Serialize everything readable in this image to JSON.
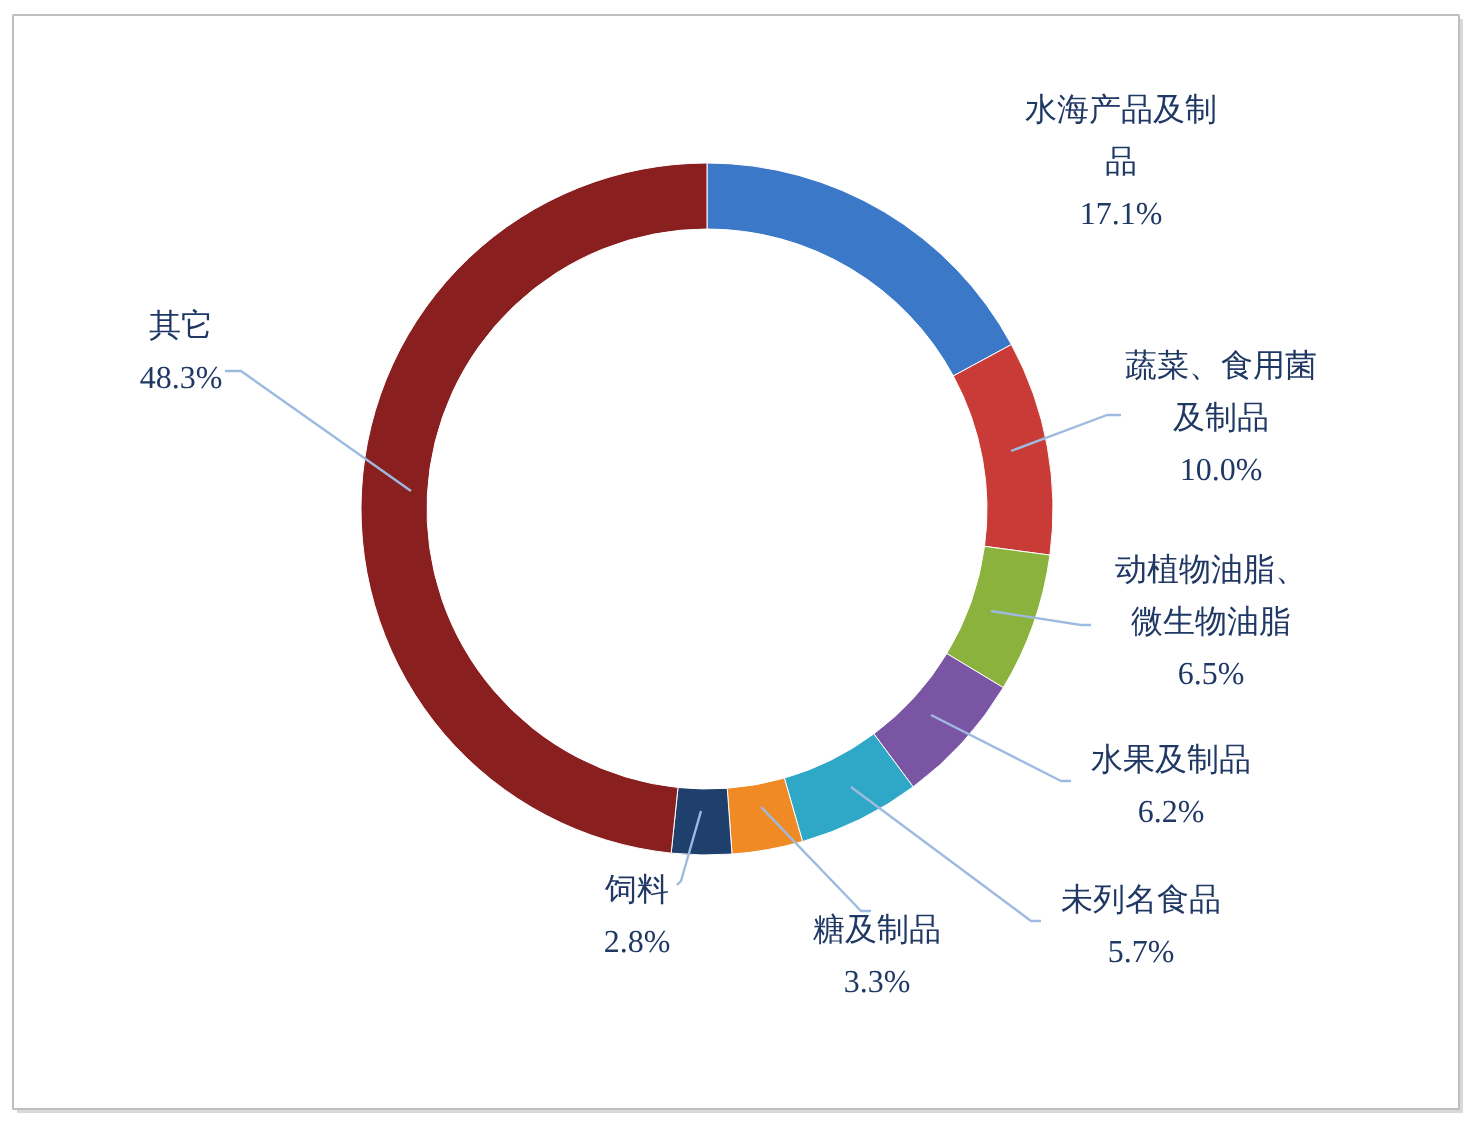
{
  "chart_data": {
    "type": "donut",
    "categories": [
      "水海产品及制品",
      "蔬菜、食用菌及制品",
      "动植物油脂、微生物油脂",
      "水果及制品",
      "未列名食品",
      "糖及制品",
      "饲料",
      "其它"
    ],
    "values": [
      17.1,
      10.0,
      6.5,
      6.2,
      5.7,
      3.3,
      2.8,
      48.3
    ],
    "colors": [
      "#3b78c8",
      "#c93b36",
      "#8cb23e",
      "#7a55a3",
      "#2fa8c8",
      "#f08a25",
      "#1f3f6c",
      "#8a1f1f"
    ],
    "value_labels": [
      "17.1%",
      "10.0%",
      "6.5%",
      "6.2%",
      "5.7%",
      "3.3%",
      "2.8%",
      "48.3%"
    ]
  }
}
